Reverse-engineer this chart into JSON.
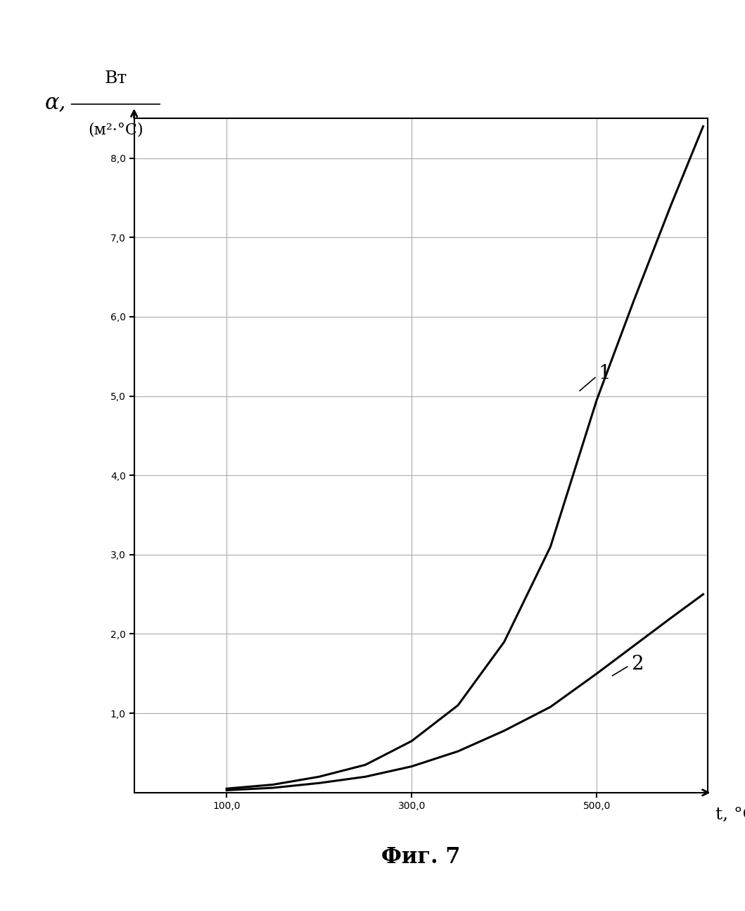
{
  "curve1_x": [
    100,
    150,
    200,
    250,
    300,
    350,
    400,
    450,
    500,
    540,
    580,
    615
  ],
  "curve1_y": [
    0.05,
    0.1,
    0.2,
    0.35,
    0.65,
    1.1,
    1.9,
    3.1,
    4.95,
    6.2,
    7.4,
    8.4
  ],
  "curve2_x": [
    100,
    150,
    200,
    250,
    300,
    350,
    400,
    450,
    500,
    540,
    580,
    615
  ],
  "curve2_y": [
    0.03,
    0.06,
    0.12,
    0.2,
    0.33,
    0.52,
    0.78,
    1.08,
    1.5,
    1.85,
    2.2,
    2.5
  ],
  "curve_color": "#000000",
  "xlim_plot": [
    0,
    620
  ],
  "ylim_plot": [
    0,
    8.5
  ],
  "xticks": [
    100.0,
    300.0,
    500.0
  ],
  "yticks": [
    1.0,
    2.0,
    3.0,
    4.0,
    5.0,
    6.0,
    7.0,
    8.0
  ],
  "label1": "1",
  "label2": "2",
  "caption": "Фиг. 7",
  "background_color": "#ffffff",
  "grid_color": "#aaaaaa",
  "tick_fontsize": 17,
  "label_fontsize": 18,
  "caption_fontsize": 22,
  "line_width": 2.2
}
